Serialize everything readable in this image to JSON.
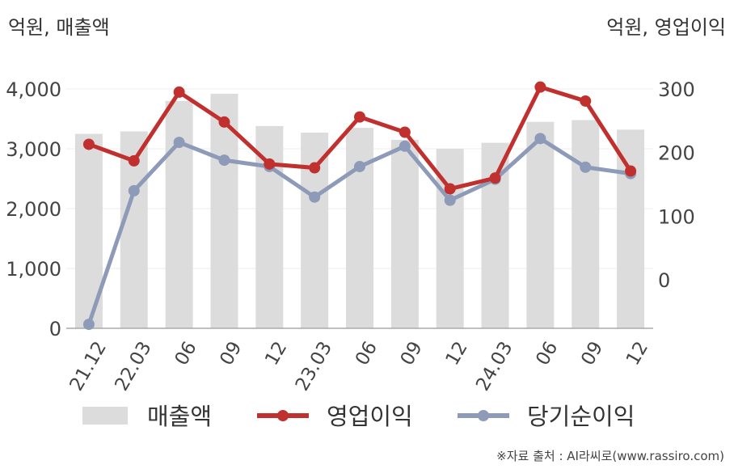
{
  "units": {
    "left": "억원, 매출액",
    "right": "억원, 영업이익"
  },
  "source": "※자료 출처 : AI라씨로(www.rassiro.com)",
  "colors": {
    "revenue": "#dcdcdc",
    "operating_profit": "#c0302e",
    "net_income": "#8e9bb8",
    "axis": "#aaaaaa",
    "grid": "#eeeeee"
  },
  "chart_data": {
    "type": "bar",
    "categories": [
      "21.12",
      "22.03",
      "06",
      "09",
      "12",
      "23.03",
      "06",
      "09",
      "12",
      "24.03",
      "06",
      "09",
      "12"
    ],
    "left_axis": {
      "ylim": [
        0,
        4000
      ],
      "ticks": [
        "0",
        "1,000",
        "2,000",
        "3,000",
        "4,000"
      ],
      "tick_values": [
        0,
        1000,
        2000,
        3000,
        4000
      ]
    },
    "right_axis": {
      "ylim": [
        -80,
        300
      ],
      "ticks": [
        "0",
        "100",
        "200",
        "300"
      ],
      "tick_values": [
        0,
        100,
        200,
        300
      ]
    },
    "grid": true,
    "legend_position": "bottom",
    "series": [
      {
        "name": "매출액",
        "type": "bar",
        "axis": "left",
        "values": [
          3250,
          3290,
          3800,
          3920,
          3380,
          3270,
          3350,
          3150,
          3000,
          3100,
          3450,
          3480,
          3320
        ]
      },
      {
        "name": "영업이익",
        "type": "line",
        "axis": "right",
        "values": [
          213,
          187,
          295,
          248,
          182,
          176,
          256,
          232,
          143,
          160,
          303,
          281,
          171
        ]
      },
      {
        "name": "당기순이익",
        "type": "line",
        "axis": "right",
        "values": [
          -70,
          140,
          216,
          188,
          178,
          130,
          178,
          210,
          125,
          158,
          222,
          177,
          167
        ]
      }
    ]
  }
}
